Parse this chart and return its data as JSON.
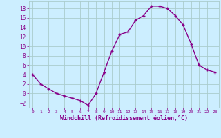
{
  "x": [
    0,
    1,
    2,
    3,
    4,
    5,
    6,
    7,
    8,
    9,
    10,
    11,
    12,
    13,
    14,
    15,
    16,
    17,
    18,
    19,
    20,
    21,
    22,
    23
  ],
  "y": [
    4,
    2,
    1,
    0,
    -0.5,
    -1,
    -1.5,
    -2.5,
    0,
    4.5,
    9,
    12.5,
    13,
    15.5,
    16.5,
    18.5,
    18.5,
    18,
    16.5,
    14.5,
    10.5,
    6,
    5,
    4.5
  ],
  "line_color": "#880088",
  "marker": "+",
  "bg_color": "#cceeff",
  "grid_color": "#aacccc",
  "xlabel": "Windchill (Refroidissement éolien,°C)",
  "xlabel_color": "#880088",
  "tick_color": "#880088",
  "ylim": [
    -3,
    19.5
  ],
  "xlim": [
    -0.5,
    23.5
  ],
  "yticks": [
    -2,
    0,
    2,
    4,
    6,
    8,
    10,
    12,
    14,
    16,
    18
  ],
  "xticks": [
    0,
    1,
    2,
    3,
    4,
    5,
    6,
    7,
    8,
    9,
    10,
    11,
    12,
    13,
    14,
    15,
    16,
    17,
    18,
    19,
    20,
    21,
    22,
    23
  ],
  "figsize": [
    3.2,
    2.0
  ],
  "dpi": 100,
  "markersize": 3.5,
  "linewidth": 1.0
}
